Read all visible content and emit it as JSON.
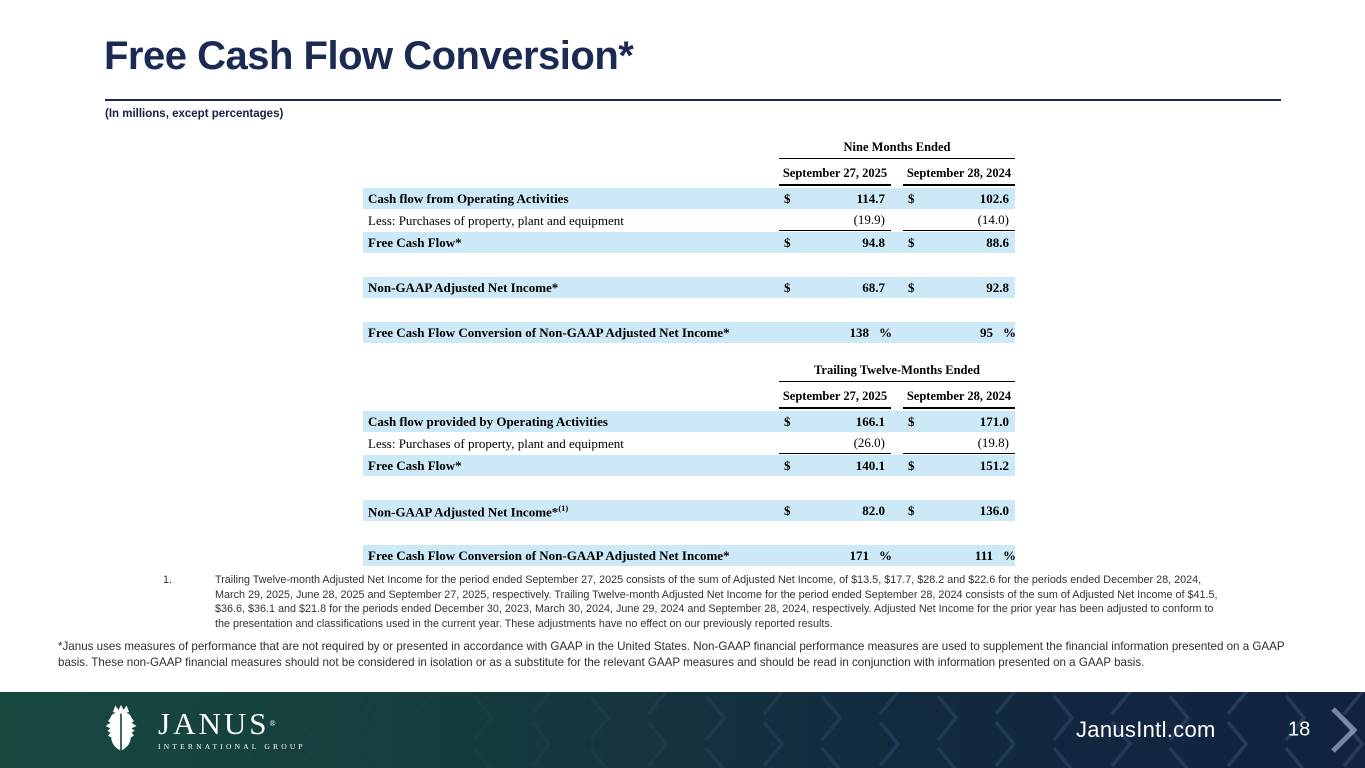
{
  "slide": {
    "title": "Free Cash Flow Conversion*",
    "subtitle": "(In millions, except percentages)"
  },
  "colors": {
    "accent_navy": "#1b2a52",
    "row_highlight": "#cde9f7",
    "footer_teal": "#17493f",
    "footer_navy": "#112340"
  },
  "tables": [
    {
      "period_header": "Nine Months Ended",
      "columns": [
        "September 27, 2025",
        "September 28, 2024"
      ],
      "rows": [
        {
          "label": "Cash flow from Operating Activities",
          "bold": true,
          "highlight": true,
          "dollar": true,
          "values": [
            "114.7",
            "102.6"
          ]
        },
        {
          "label": "Less: Purchases of property, plant and equipment",
          "values": [
            "(19.9)",
            "(14.0)"
          ],
          "underline": true
        },
        {
          "label": "Free Cash Flow*",
          "bold": true,
          "highlight": true,
          "dollar": true,
          "values": [
            "94.8",
            "88.6"
          ]
        },
        {
          "spacer": true
        },
        {
          "label": "Non-GAAP Adjusted Net Income*",
          "bold": true,
          "highlight": true,
          "dollar": true,
          "values": [
            "68.7",
            "92.8"
          ]
        },
        {
          "spacer": true
        },
        {
          "label": "Free Cash Flow Conversion of Non-GAAP Adjusted Net Income*",
          "bold": true,
          "highlight": true,
          "percent": true,
          "values": [
            "138",
            "95"
          ]
        }
      ]
    },
    {
      "period_header": "Trailing Twelve-Months Ended",
      "columns": [
        "September 27, 2025",
        "September 28, 2024"
      ],
      "rows": [
        {
          "label": "Cash flow provided by Operating Activities",
          "bold": true,
          "highlight": true,
          "dollar": true,
          "values": [
            "166.1",
            "171.0"
          ]
        },
        {
          "label": "Less: Purchases of property, plant and equipment",
          "values": [
            "(26.0)",
            "(19.8)"
          ],
          "underline": true
        },
        {
          "label": "Free Cash Flow*",
          "bold": true,
          "highlight": true,
          "dollar": true,
          "values": [
            "140.1",
            "151.2"
          ]
        },
        {
          "spacer": true
        },
        {
          "label": "Non-GAAP Adjusted Net Income*",
          "sup": "(1)",
          "bold": true,
          "highlight": true,
          "dollar": true,
          "values": [
            "82.0",
            "136.0"
          ]
        },
        {
          "spacer": true
        },
        {
          "label": "Free Cash Flow Conversion of Non-GAAP Adjusted Net Income*",
          "bold": true,
          "highlight": true,
          "percent": true,
          "values": [
            "171",
            "111"
          ]
        }
      ]
    }
  ],
  "footnotes": {
    "numbered": [
      {
        "marker": "1.",
        "text": "Trailing Twelve-month Adjusted Net Income for the period ended September 27, 2025 consists of the sum of Adjusted Net Income, of $13.5, $17.7, $28.2 and $22.6 for the periods ended December 28, 2024, March 29, 2025, June 28, 2025 and September 27, 2025, respectively. Trailing Twelve-month Adjusted Net Income for the period ended September 28, 2024 consists of the sum of Adjusted Net Income of $41.5, $36.6, $36.1 and $21.8 for the periods ended December 30, 2023, March 30, 2024, June 29, 2024 and September 28, 2024, respectively. Adjusted Net Income for the prior year has been adjusted to conform to the presentation and classifications used in the current year. These adjustments have no effect on our previously reported results."
      }
    ],
    "asterisk": "*Janus uses measures of performance that are not required by or presented in accordance with GAAP in the United States. Non-GAAP financial performance measures are used to supplement the financial information presented on a GAAP basis. These non-GAAP financial measures should not be considered in isolation or as a substitute for the relevant GAAP measures and should be read in conjunction with information presented on a GAAP basis."
  },
  "footer": {
    "website": "JanusIntl.com",
    "page_number": "18",
    "logo_title": "JANUS",
    "logo_reg": "®",
    "logo_subtitle": "INTERNATIONAL GROUP"
  }
}
